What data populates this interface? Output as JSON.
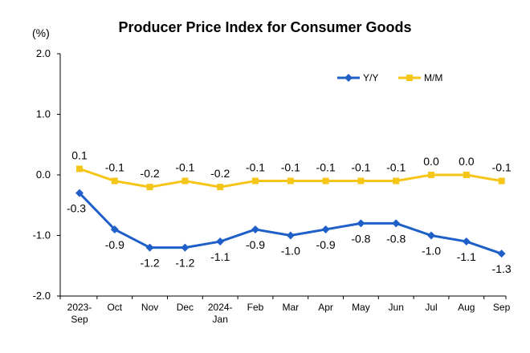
{
  "chart_data": {
    "type": "line",
    "title": "Producer Price Index for Consumer Goods",
    "unit_label": "(%)",
    "categories": [
      [
        "2023-",
        "Sep"
      ],
      [
        "Oct"
      ],
      [
        "Nov"
      ],
      [
        "Dec"
      ],
      [
        "2024-",
        "Jan"
      ],
      [
        "Feb"
      ],
      [
        "Mar"
      ],
      [
        "Apr"
      ],
      [
        "May"
      ],
      [
        "Jun"
      ],
      [
        "Jul"
      ],
      [
        "Aug"
      ],
      [
        "Sep"
      ]
    ],
    "ylim": [
      -2.0,
      2.0
    ],
    "yticks": [
      "2.0",
      "1.0",
      "0.0",
      "-1.0",
      "-2.0"
    ],
    "grid": false,
    "legend_position": "top-right",
    "series": [
      {
        "name": "Y/Y",
        "color": "#1f5fc8",
        "marker": "diamond",
        "values": [
          -0.3,
          -0.9,
          -1.2,
          -1.2,
          -1.1,
          -0.9,
          -1.0,
          -0.9,
          -0.8,
          -0.8,
          -1.0,
          -1.1,
          -1.3
        ],
        "labels": [
          "-0.3",
          "-0.9",
          "-1.2",
          "-1.2",
          "-1.1",
          "-0.9",
          "-1.0",
          "-0.9",
          "-0.8",
          "-0.8",
          "-1.0",
          "-1.1",
          "-1.3"
        ]
      },
      {
        "name": "M/M",
        "color": "#f5c518",
        "marker": "square",
        "values": [
          0.1,
          -0.1,
          -0.2,
          -0.1,
          -0.2,
          -0.1,
          -0.1,
          -0.1,
          -0.1,
          -0.1,
          0.0,
          0.0,
          -0.1
        ],
        "labels": [
          "0.1",
          "-0.1",
          "-0.2",
          "-0.1",
          "-0.2",
          "-0.1",
          "-0.1",
          "-0.1",
          "-0.1",
          "-0.1",
          "0.0",
          "0.0",
          "-0.1"
        ]
      }
    ]
  }
}
